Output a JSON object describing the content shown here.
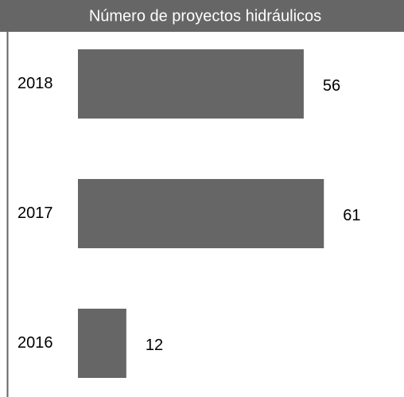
{
  "chart_data": {
    "type": "bar",
    "orientation": "horizontal",
    "title": "Número de proyectos hidráulicos",
    "categories": [
      "2018",
      "2017",
      "2016"
    ],
    "values": [
      56,
      61,
      12
    ],
    "color": "#666666"
  }
}
